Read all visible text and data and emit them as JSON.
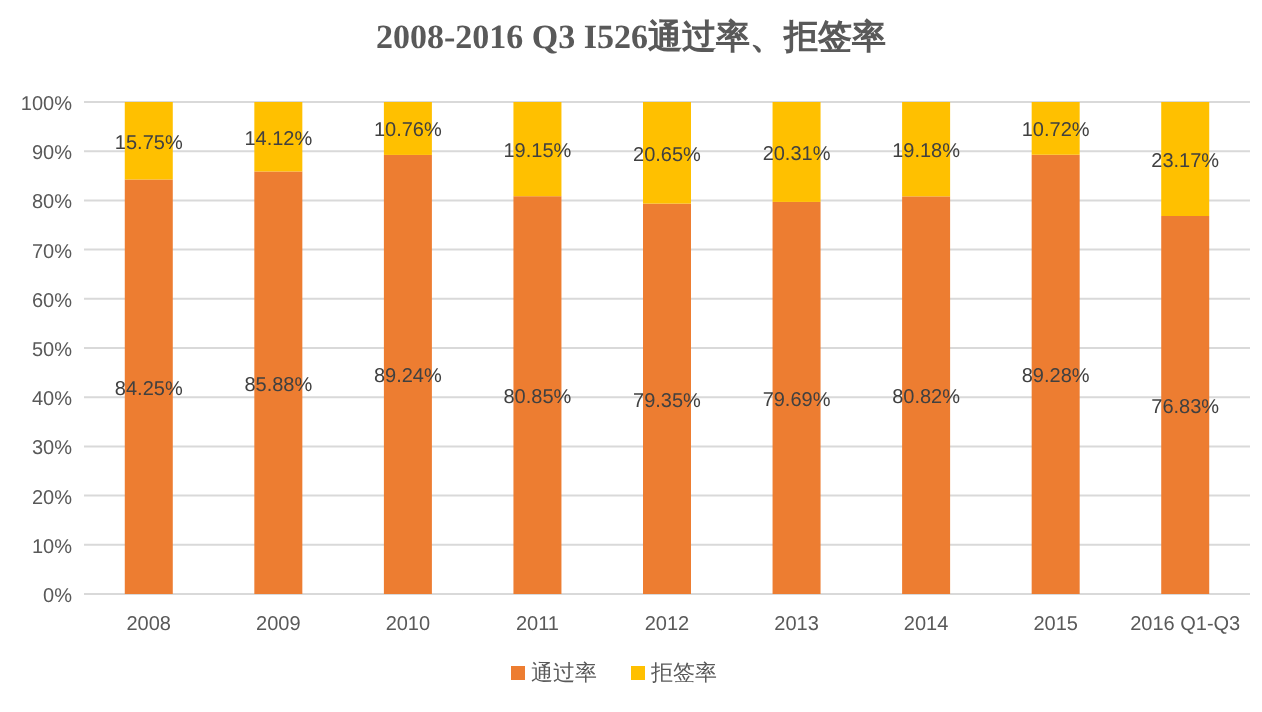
{
  "chart_data": {
    "type": "bar",
    "stacked": true,
    "title": "2008-2016 Q3 I526通过率、拒签率",
    "categories": [
      "2008",
      "2009",
      "2010",
      "2011",
      "2012",
      "2013",
      "2014",
      "2015",
      "2016 Q1-Q3"
    ],
    "series": [
      {
        "name": "通过率",
        "color": "#ed7d31",
        "values": [
          84.25,
          85.88,
          89.24,
          80.85,
          79.35,
          79.69,
          80.82,
          89.28,
          76.83
        ],
        "value_labels": [
          "84.25%",
          "85.88%",
          "89.24%",
          "80.85%",
          "79.35%",
          "79.69%",
          "80.82%",
          "89.28%",
          "76.83%"
        ]
      },
      {
        "name": "拒签率",
        "color": "#ffc000",
        "values": [
          15.75,
          14.12,
          10.76,
          19.15,
          20.65,
          20.31,
          19.18,
          10.72,
          23.17
        ],
        "value_labels": [
          "15.75%",
          "14.12%",
          "10.76%",
          "19.15%",
          "20.65%",
          "20.31%",
          "19.18%",
          "10.72%",
          "23.17%"
        ]
      }
    ],
    "ylim": [
      0,
      100
    ],
    "yticks": [
      {
        "value": 0,
        "label": "0%"
      },
      {
        "value": 10,
        "label": "10%"
      },
      {
        "value": 20,
        "label": "20%"
      },
      {
        "value": 30,
        "label": "30%"
      },
      {
        "value": 40,
        "label": "40%"
      },
      {
        "value": 50,
        "label": "50%"
      },
      {
        "value": 60,
        "label": "60%"
      },
      {
        "value": 70,
        "label": "70%"
      },
      {
        "value": 80,
        "label": "80%"
      },
      {
        "value": 90,
        "label": "90%"
      },
      {
        "value": 100,
        "label": "100%"
      }
    ],
    "grid": "y",
    "legend": "bottom"
  }
}
